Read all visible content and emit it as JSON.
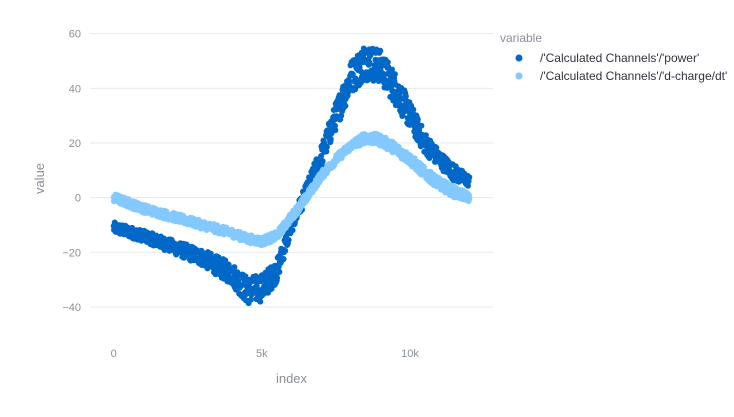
{
  "chart_data": {
    "type": "scatter",
    "xlabel": "index",
    "ylabel": "value",
    "xlim": [
      -800,
      12800
    ],
    "ylim": [
      -51,
      65
    ],
    "xticks": [
      0,
      5000,
      10000
    ],
    "xtick_labels": [
      "0",
      "5k",
      "10k"
    ],
    "yticks": [
      -40,
      -20,
      0,
      20,
      40,
      60
    ],
    "ytick_labels": [
      "−40",
      "−20",
      "0",
      "20",
      "40",
      "60"
    ],
    "grid": true,
    "legend": {
      "title": "variable",
      "position": "top-right"
    },
    "series": [
      {
        "name": "/'Calculated Channels'/'power'",
        "color": "#0068c9",
        "x": [
          0,
          1000,
          2000,
          3000,
          4000,
          4500,
          5000,
          5500,
          6000,
          6500,
          7000,
          7500,
          8000,
          8500,
          9000,
          9500,
          10000,
          10500,
          11000,
          11500,
          12000
        ],
        "y": [
          -11,
          -14,
          -18,
          -22,
          -28,
          -34,
          -33,
          -27,
          -10,
          2,
          15,
          30,
          44,
          50,
          48,
          40,
          30,
          20,
          14,
          9,
          6
        ],
        "spread": [
          2,
          2,
          2.5,
          3,
          4,
          5,
          5,
          4,
          3,
          3,
          4,
          5,
          6,
          7,
          6,
          6,
          5,
          4,
          3,
          3,
          2
        ]
      },
      {
        "name": "/'Calculated Channels'/'d-charge/dt'",
        "color": "#83c9ff",
        "x": [
          0,
          1000,
          2000,
          3000,
          4000,
          4500,
          5000,
          5500,
          6000,
          6500,
          7000,
          7500,
          8000,
          8500,
          9000,
          9500,
          10000,
          10500,
          11000,
          11500,
          12000
        ],
        "y": [
          0,
          -4,
          -7,
          -10,
          -13,
          -15,
          -16,
          -14,
          -7,
          0,
          8,
          14,
          19,
          22,
          21,
          18,
          14,
          9,
          5,
          2,
          0
        ],
        "spread": [
          1.5,
          1.5,
          1.5,
          1.5,
          1.5,
          1.5,
          1.5,
          1.5,
          1.5,
          1.5,
          1.5,
          1.5,
          1.5,
          2,
          2,
          2,
          2,
          2,
          2,
          2,
          1.5
        ]
      }
    ]
  }
}
